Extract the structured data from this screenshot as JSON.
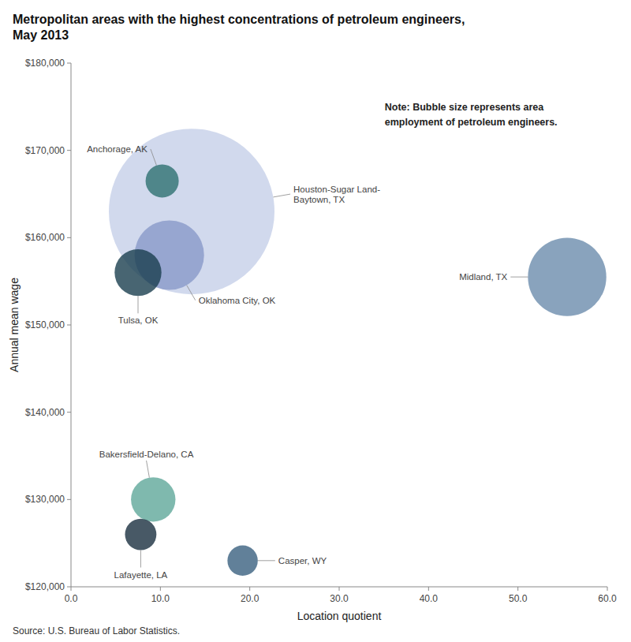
{
  "chart_data": {
    "type": "bubble",
    "title": "Metropolitan areas with the highest concentrations of petroleum engineers,\nMay 2013",
    "xlabel": "Location quotient",
    "ylabel": "Annual mean wage",
    "note": "Note: Bubble size represents area\nemployment of petroleum engineers.",
    "source": "Source: U.S. Bureau of Labor Statistics.",
    "labels": [
      "Houston-Sugar Land-\nBaytown, TX",
      "Oklahoma City, OK",
      "Anchorage, AK",
      "Tulsa, OK",
      "Midland, TX",
      "Bakersfield-Delano, CA",
      "Lafayette, LA",
      "Casper, WY"
    ],
    "x": [
      13.5,
      11.0,
      10.2,
      7.5,
      55.5,
      9.2,
      7.8,
      19.2
    ],
    "values": [
      163000,
      158000,
      166500,
      156000,
      155500,
      130000,
      126000,
      123000
    ],
    "sizes": [
      12500,
      2200,
      500,
      1000,
      2800,
      900,
      450,
      420
    ],
    "colors": [
      "#c5cfe8",
      "#8899c8",
      "#2e7070",
      "#1a3f4f",
      "#6c8cac",
      "#5fa89a",
      "#1a3040",
      "#3a6080"
    ],
    "xlim": [
      0,
      60
    ],
    "ylim": [
      120000,
      180000
    ],
    "xticks": [
      {
        "value": 0.0,
        "label": "0.0"
      },
      {
        "value": 10.0,
        "label": "10.0"
      },
      {
        "value": 20.0,
        "label": "20.0"
      },
      {
        "value": 30.0,
        "label": "30.0"
      },
      {
        "value": 40.0,
        "label": "40.0"
      },
      {
        "value": 50.0,
        "label": "50.0"
      },
      {
        "value": 60.0,
        "label": "60.0"
      }
    ],
    "yticks": [
      {
        "value": 120000,
        "label": "$120,000"
      },
      {
        "value": 130000,
        "label": "$130,000"
      },
      {
        "value": 140000,
        "label": "$140,000"
      },
      {
        "value": 150000,
        "label": "$150,000"
      },
      {
        "value": 160000,
        "label": "$160,000"
      },
      {
        "value": 170000,
        "label": "$170,000"
      },
      {
        "value": 180000,
        "label": "$180,000"
      }
    ],
    "grid": false
  }
}
